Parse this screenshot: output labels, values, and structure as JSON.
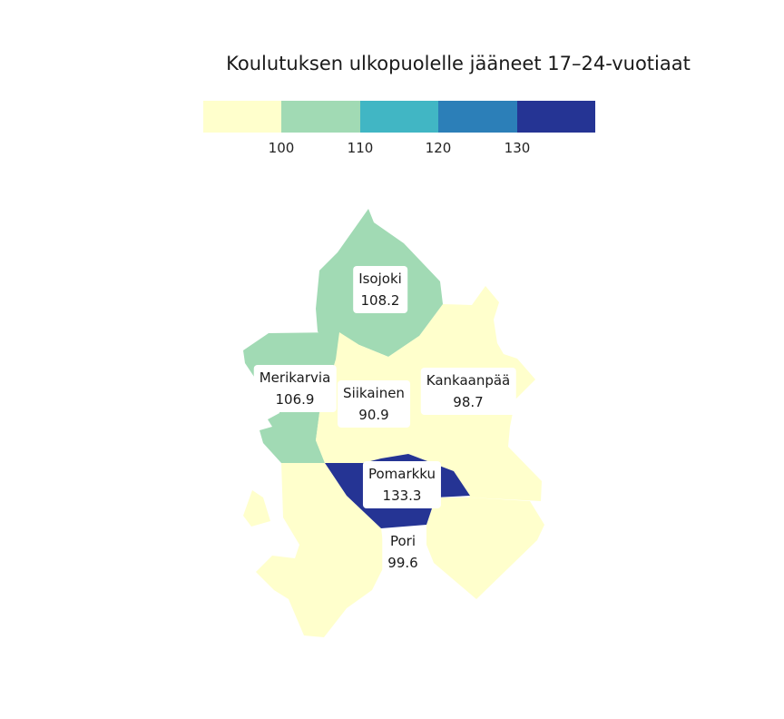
{
  "title": "Koulutuksen ulkopuolelle jääneet 17–24-vuotiaat",
  "legend": {
    "colors": [
      "#ffffcc",
      "#a1dab4",
      "#41b6c4",
      "#2c7fb8",
      "#253494"
    ],
    "ticks": [
      "100",
      "110",
      "120",
      "130"
    ]
  },
  "municipalities": [
    {
      "name": "Isojoki",
      "value": "108.2",
      "color": "#a1dab4"
    },
    {
      "name": "Merikarvia",
      "value": "106.9",
      "color": "#a1dab4"
    },
    {
      "name": "Siikainen",
      "value": "90.9",
      "color": "#ffffcc"
    },
    {
      "name": "Kankaanpää",
      "value": "98.7",
      "color": "#ffffcc"
    },
    {
      "name": "Pomarkku",
      "value": "133.3",
      "color": "#253494"
    },
    {
      "name": "Pori",
      "value": "99.6",
      "color": "#ffffcc"
    }
  ]
}
